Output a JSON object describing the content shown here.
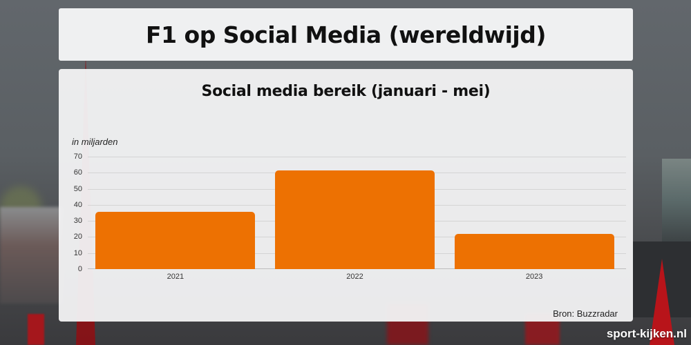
{
  "header": {
    "title": "F1 op Social Media (wereldwijd)"
  },
  "chart": {
    "title": "Social media bereik (januari - mei)",
    "unit_label": "in miljarden",
    "source": "Bron: Buzzradar",
    "bar_color": "#ed7102"
  },
  "watermark": "sport-kijken.nl",
  "chart_data": {
    "type": "bar",
    "title": "Social media bereik (januari - mei)",
    "suptitle": "F1 op Social Media (wereldwijd)",
    "xlabel": "",
    "ylabel": "in miljarden",
    "categories": [
      "2021",
      "2022",
      "2023"
    ],
    "values": [
      35.5,
      61.5,
      22
    ],
    "ylim": [
      0,
      70
    ],
    "yticks": [
      0,
      10,
      20,
      30,
      40,
      50,
      60,
      70
    ],
    "grid": true,
    "legend": null,
    "source": "Bron: Buzzradar",
    "color": "#ed7102"
  }
}
